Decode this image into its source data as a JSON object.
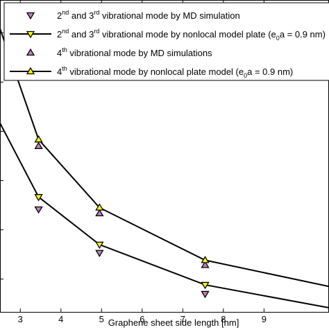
{
  "chart_data": {
    "type": "line",
    "xlabel": "Graphene sheet side length [nm]",
    "ylabel": "",
    "xlim": [
      2.5,
      10.6
    ],
    "ylim": [
      0.8,
      4.6
    ],
    "xticks": [
      3,
      4,
      5,
      6,
      7,
      8,
      9
    ],
    "grid": false,
    "legend_position": "top",
    "series": [
      {
        "name": "2nd and 3rd vibrational mode by MD simulation",
        "style": "marker",
        "marker": "triangle-down",
        "color": "#c080c0",
        "x": [
          3.45,
          4.95,
          7.55
        ],
        "y": [
          2.05,
          1.52,
          1.02
        ]
      },
      {
        "name": "2nd and 3rd vibrational mode by nonlocal model plate (e0a = 0.9 nm)",
        "style": "line-marker",
        "marker": "triangle-down",
        "color": "#ffff00",
        "x": [
          2.5,
          3.45,
          4.95,
          7.55,
          10.6
        ],
        "y": [
          3.1,
          2.2,
          1.62,
          1.13,
          0.85
        ]
      },
      {
        "name": "4th vibrational mode by MD simulations",
        "style": "marker",
        "marker": "triangle-up",
        "color": "#c080c0",
        "x": [
          3.45,
          4.95,
          7.55
        ],
        "y": [
          2.82,
          2.0,
          1.37
        ]
      },
      {
        "name": "4th vibrational mode by nonlocal plate model (e0a = 0.9 nm)",
        "style": "line-marker",
        "marker": "triangle-up",
        "color": "#ffff00",
        "x": [
          2.5,
          3.45,
          4.95,
          7.55,
          10.6
        ],
        "y": [
          4.25,
          2.9,
          2.07,
          1.43,
          1.11
        ]
      }
    ],
    "legend": [
      {
        "marker": "triangle-down",
        "color": "#c080c0",
        "line": false,
        "pre": "2",
        "sup1": "nd",
        "mid": " and 3",
        "sup2": "rd",
        "post": " vibrational mode by MD simulation",
        "sub": "",
        "tail": ""
      },
      {
        "marker": "triangle-down",
        "color": "#ffff00",
        "line": true,
        "pre": "2",
        "sup1": "nd",
        "mid": " and 3",
        "sup2": "rd",
        "post": " vibrational mode by nonlocal model plate (e",
        "sub": "0",
        "tail": "a = 0.9 nm)"
      },
      {
        "marker": "triangle-up",
        "color": "#c080c0",
        "line": false,
        "pre": "4",
        "sup1": "th",
        "mid": " vibrational mode by MD simulations",
        "sup2": "",
        "post": "",
        "sub": "",
        "tail": ""
      },
      {
        "marker": "triangle-up",
        "color": "#ffff00",
        "line": true,
        "pre": "4",
        "sup1": "th",
        "mid": " vibrational mode by nonlocal plate model (e",
        "sup2": "",
        "post": "",
        "sub": "0",
        "tail": "a = 0.9 nm)"
      }
    ]
  }
}
